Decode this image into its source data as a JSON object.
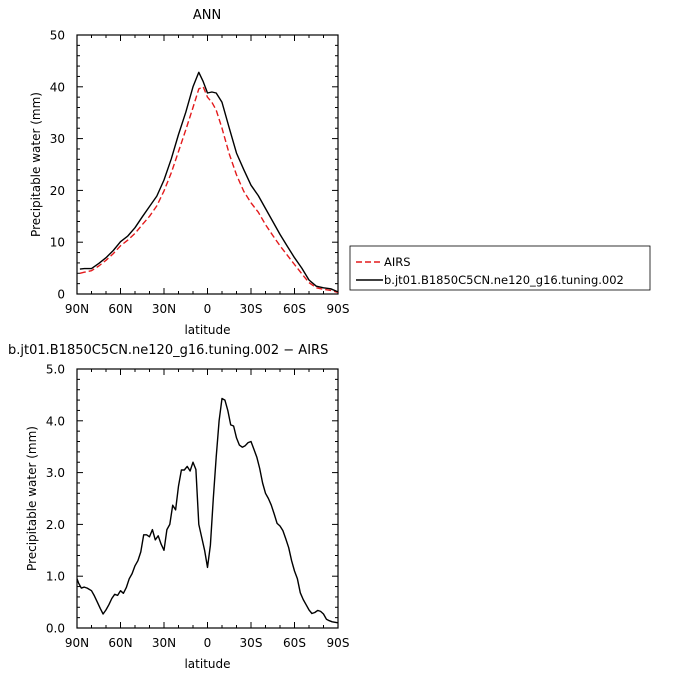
{
  "chart_data": [
    {
      "type": "line",
      "title": "ANN",
      "xlabel": "latitude",
      "ylabel": "Precipitable water (mm)",
      "xlim": [
        90,
        -90
      ],
      "ylim": [
        0,
        50
      ],
      "x_ticks": [
        90,
        60,
        30,
        0,
        -30,
        -60,
        -90
      ],
      "x_tick_labels": [
        "90N",
        "60N",
        "30N",
        "0",
        "30S",
        "60S",
        "90S"
      ],
      "y_ticks": [
        0,
        10,
        20,
        30,
        40,
        50
      ],
      "y_tick_labels": [
        "0",
        "10",
        "20",
        "30",
        "40",
        "50"
      ],
      "grid": false,
      "legend_placement": "right, outside plot",
      "series": [
        {
          "name": "AIRS",
          "color": "#e31a1c",
          "dash": "dashed",
          "x": [
            88,
            85,
            80,
            75,
            70,
            65,
            60,
            55,
            50,
            45,
            40,
            35,
            30,
            25,
            20,
            15,
            10,
            6,
            3,
            0,
            -3,
            -6,
            -10,
            -15,
            -20,
            -25,
            -30,
            -35,
            -40,
            -45,
            -50,
            -55,
            -60,
            -65,
            -70,
            -75,
            -80,
            -85,
            -90
          ],
          "values": [
            4.0,
            4.2,
            4.5,
            5.4,
            6.5,
            7.8,
            9.3,
            10.4,
            11.7,
            13.4,
            15.0,
            17.0,
            19.9,
            23.4,
            27.5,
            31.7,
            36.0,
            39.6,
            40.0,
            38.0,
            37.0,
            35.5,
            32.0,
            27.0,
            23.0,
            19.8,
            17.6,
            15.8,
            13.4,
            11.3,
            9.3,
            7.5,
            5.7,
            3.9,
            2.2,
            1.2,
            0.9,
            0.7,
            0.3
          ]
        },
        {
          "name": "b.jt01.B1850C5CN.ne120_g16.tuning.002",
          "color": "#000000",
          "dash": "solid",
          "x": [
            88,
            85,
            80,
            75,
            70,
            65,
            60,
            55,
            50,
            45,
            40,
            35,
            30,
            25,
            20,
            15,
            10,
            6,
            3,
            0,
            -3,
            -6,
            -10,
            -15,
            -20,
            -25,
            -30,
            -35,
            -40,
            -45,
            -50,
            -55,
            -60,
            -65,
            -70,
            -75,
            -80,
            -85,
            -90
          ],
          "values": [
            4.8,
            4.9,
            4.9,
            5.9,
            7.0,
            8.4,
            10.1,
            11.2,
            12.8,
            14.9,
            16.9,
            18.9,
            22.0,
            26.1,
            30.8,
            35.1,
            40.0,
            42.8,
            41.0,
            38.8,
            39.0,
            38.8,
            37.0,
            32.0,
            27.2,
            24.0,
            21.0,
            19.0,
            16.5,
            14.0,
            11.5,
            9.2,
            7.0,
            5.0,
            2.7,
            1.5,
            1.2,
            1.0,
            0.4
          ]
        }
      ]
    },
    {
      "type": "line",
      "title": "b.jt01.B1850C5CN.ne120_g16.tuning.002 − AIRS",
      "xlabel": "latitude",
      "ylabel": "Precipitable water (mm)",
      "xlim": [
        90,
        -90
      ],
      "ylim": [
        0,
        5
      ],
      "x_ticks": [
        90,
        60,
        30,
        0,
        -30,
        -60,
        -90
      ],
      "x_tick_labels": [
        "90N",
        "60N",
        "30N",
        "0",
        "30S",
        "60S",
        "90S"
      ],
      "y_ticks": [
        0,
        1,
        2,
        3,
        4,
        5
      ],
      "y_tick_labels": [
        "0.0",
        "1.0",
        "2.0",
        "3.0",
        "4.0",
        "5.0"
      ],
      "grid": false,
      "series": [
        {
          "color": "#000000",
          "dash": "solid",
          "x": [
            90,
            89,
            87,
            85,
            83,
            80,
            78,
            76,
            74,
            72,
            70,
            68,
            66,
            64,
            62,
            60,
            58,
            56,
            54,
            52,
            50,
            48,
            46,
            44,
            42,
            40,
            38,
            36,
            34,
            32,
            30,
            28,
            26,
            24,
            22,
            20,
            18,
            16,
            14,
            12,
            10,
            8,
            6,
            4,
            2,
            0,
            -2,
            -4,
            -6,
            -8,
            -10,
            -12,
            -14,
            -16,
            -18,
            -20,
            -22,
            -24,
            -26,
            -28,
            -30,
            -32,
            -34,
            -36,
            -38,
            -40,
            -42,
            -44,
            -46,
            -48,
            -50,
            -52,
            -54,
            -56,
            -58,
            -60,
            -62,
            -64,
            -66,
            -68,
            -70,
            -72,
            -74,
            -76,
            -78,
            -80,
            -82,
            -84,
            -86,
            -88,
            -90
          ],
          "values": [
            0.95,
            0.87,
            0.77,
            0.79,
            0.77,
            0.72,
            0.62,
            0.5,
            0.38,
            0.27,
            0.35,
            0.45,
            0.57,
            0.65,
            0.63,
            0.72,
            0.67,
            0.78,
            0.95,
            1.05,
            1.2,
            1.3,
            1.47,
            1.8,
            1.8,
            1.76,
            1.9,
            1.7,
            1.78,
            1.62,
            1.5,
            1.9,
            2.0,
            2.37,
            2.28,
            2.74,
            3.05,
            3.05,
            3.12,
            3.03,
            3.2,
            3.06,
            2.0,
            1.75,
            1.5,
            1.17,
            1.6,
            2.5,
            3.3,
            4.0,
            4.43,
            4.4,
            4.2,
            3.92,
            3.9,
            3.67,
            3.53,
            3.49,
            3.52,
            3.58,
            3.6,
            3.45,
            3.3,
            3.08,
            2.8,
            2.6,
            2.5,
            2.37,
            2.2,
            2.02,
            1.97,
            1.88,
            1.72,
            1.55,
            1.3,
            1.1,
            0.95,
            0.68,
            0.55,
            0.45,
            0.35,
            0.28,
            0.3,
            0.34,
            0.32,
            0.27,
            0.17,
            0.14,
            0.12,
            0.11,
            0.1
          ]
        }
      ]
    }
  ]
}
